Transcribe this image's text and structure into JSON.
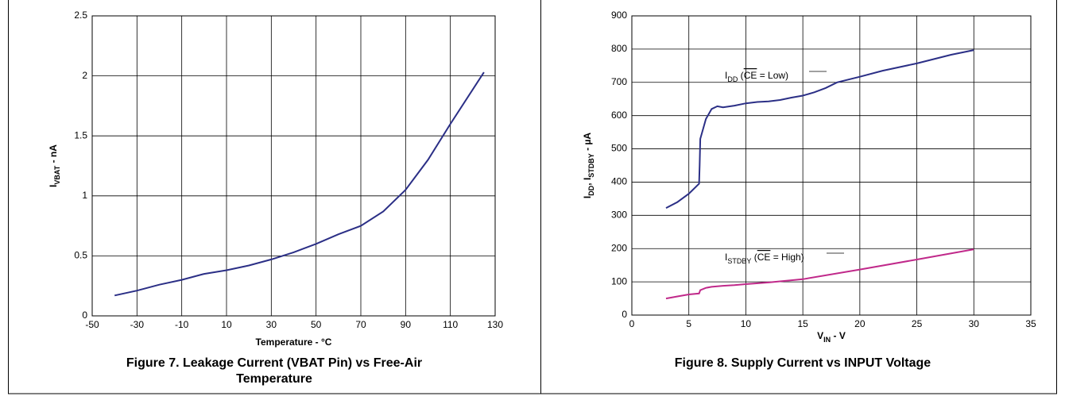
{
  "chart_data": [
    {
      "type": "line",
      "x": [
        -40,
        -30,
        -20,
        -10,
        0,
        10,
        20,
        30,
        40,
        50,
        60,
        70,
        80,
        90,
        100,
        110,
        125
      ],
      "series": [
        {
          "color": "#2b2f86",
          "values": [
            0.17,
            0.21,
            0.26,
            0.3,
            0.35,
            0.38,
            0.42,
            0.47,
            0.53,
            0.6,
            0.68,
            0.75,
            0.87,
            1.05,
            1.3,
            1.6,
            2.03
          ]
        }
      ],
      "xlim": [
        -50,
        130
      ],
      "xticks": [
        -50,
        -30,
        -10,
        10,
        30,
        50,
        70,
        90,
        110,
        130
      ],
      "ylim": [
        0,
        2.5
      ],
      "yticks": [
        0,
        0.5,
        1,
        1.5,
        2,
        2.5
      ],
      "grid": true,
      "xlabel": "Temperature - °C",
      "ylabel_parts": [
        "I",
        "VBAT",
        " - nA"
      ],
      "caption": "Figure 7. Leakage Current (VBAT Pin) vs Free-Air Temperature"
    },
    {
      "type": "line",
      "series": [
        {
          "color": "#2b2f86",
          "x": [
            3,
            4,
            5,
            5.9,
            5.95,
            6,
            6.5,
            7,
            7.5,
            8,
            9,
            10,
            11,
            12,
            13,
            14,
            15,
            16,
            17,
            18,
            20,
            22,
            25,
            28,
            30
          ],
          "values": [
            322,
            340,
            365,
            395,
            450,
            530,
            590,
            620,
            628,
            625,
            630,
            637,
            641,
            643,
            647,
            654,
            660,
            670,
            683,
            700,
            717,
            735,
            757,
            783,
            797
          ]
        },
        {
          "color": "#c0298a",
          "x": [
            3,
            4,
            5,
            5.9,
            6,
            6.5,
            7,
            8,
            9,
            10,
            12,
            15,
            20,
            25,
            30
          ],
          "values": [
            50,
            56,
            62,
            65,
            75,
            82,
            85,
            88,
            90,
            93,
            98,
            108,
            137,
            167,
            198
          ]
        }
      ],
      "annotations": [
        {
          "parts": [
            "I",
            "DD",
            " (",
            "CE",
            " = Low)"
          ]
        },
        {
          "parts": [
            "I",
            "STDBY",
            " (",
            "CE",
            " = High)"
          ]
        }
      ],
      "xlim": [
        0,
        35
      ],
      "xticks": [
        0,
        5,
        10,
        15,
        20,
        25,
        30,
        35
      ],
      "ylim": [
        0,
        900
      ],
      "yticks": [
        0,
        100,
        200,
        300,
        400,
        500,
        600,
        700,
        800,
        900
      ],
      "grid": true,
      "xlabel_parts": [
        "V",
        "IN",
        " - V"
      ],
      "ylabel_parts": [
        "I",
        "DD",
        ", I",
        "STDBY",
        " - µA"
      ],
      "caption": "Figure 8. Supply Current vs INPUT Voltage"
    }
  ]
}
